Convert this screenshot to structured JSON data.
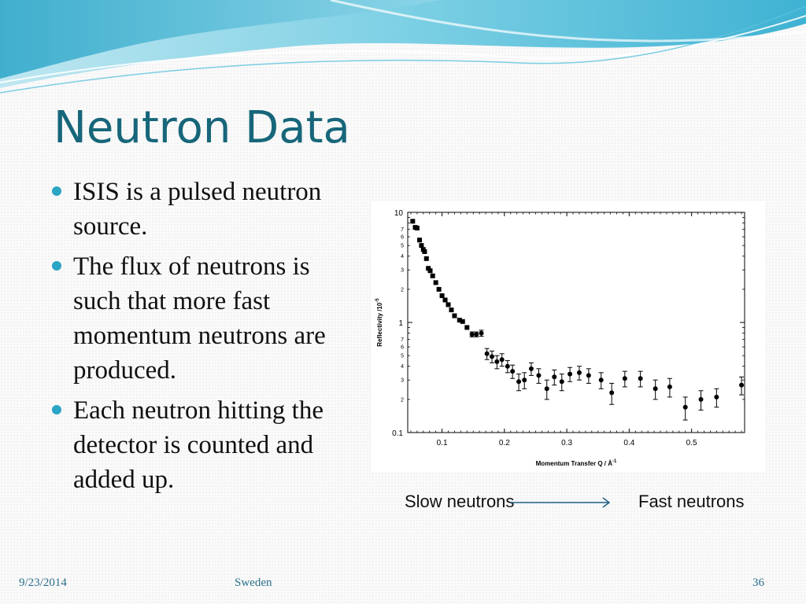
{
  "slide": {
    "title": "Neutron Data",
    "bullets": [
      "ISIS is a pulsed neutron source.",
      "The flux of neutrons is such that more fast momentum neutrons are produced.",
      "Each neutron hitting the detector is counted and added up."
    ],
    "legend": {
      "slow": "Slow neutrons",
      "fast": "Fast neutrons"
    },
    "footer": {
      "date": "9/23/2014",
      "center": "Sweden",
      "page": "36"
    },
    "accent_color": "#17667a",
    "bullet_color": "#2aa5c4"
  },
  "chart_data": {
    "type": "scatter",
    "xlabel": "Momentum Transfer Q / Å",
    "xlabel_sup": "-1",
    "ylabel": "Reflectivity /10",
    "ylabel_sup": "-5",
    "xlim": [
      0.045,
      0.585
    ],
    "ylim": [
      0.1,
      10
    ],
    "yscale": "log",
    "xticks": [
      "0.1",
      "0.2",
      "0.3",
      "0.4",
      "0.5"
    ],
    "xtick_values": [
      0.1,
      0.2,
      0.3,
      0.4,
      0.5
    ],
    "yticks_major": [
      "0.1",
      "1",
      "10"
    ],
    "ytick_major_values": [
      0.1,
      1,
      10
    ],
    "yticks_minor_labels": [
      "2",
      "3",
      "4",
      "5",
      "6",
      "7"
    ],
    "yticks_minor_values": [
      2,
      3,
      4,
      5,
      6,
      7
    ],
    "series": [
      {
        "marker": "square",
        "points": [
          {
            "x": 0.053,
            "y": 8.3
          },
          {
            "x": 0.057,
            "y": 7.3
          },
          {
            "x": 0.06,
            "y": 7.2
          },
          {
            "x": 0.064,
            "y": 5.6
          },
          {
            "x": 0.067,
            "y": 5.0
          },
          {
            "x": 0.07,
            "y": 4.6
          },
          {
            "x": 0.072,
            "y": 4.4
          },
          {
            "x": 0.075,
            "y": 3.8
          },
          {
            "x": 0.078,
            "y": 3.1
          },
          {
            "x": 0.081,
            "y": 2.95
          },
          {
            "x": 0.085,
            "y": 2.65
          },
          {
            "x": 0.09,
            "y": 2.3
          },
          {
            "x": 0.095,
            "y": 2.0
          },
          {
            "x": 0.1,
            "y": 1.75
          },
          {
            "x": 0.105,
            "y": 1.6
          },
          {
            "x": 0.11,
            "y": 1.45
          },
          {
            "x": 0.115,
            "y": 1.3
          },
          {
            "x": 0.12,
            "y": 1.15
          },
          {
            "x": 0.128,
            "y": 1.05
          },
          {
            "x": 0.133,
            "y": 1.02
          },
          {
            "x": 0.14,
            "y": 0.9
          }
        ]
      },
      {
        "marker": "circle",
        "points": [
          {
            "x": 0.148,
            "y": 0.78,
            "err": 0.04
          },
          {
            "x": 0.155,
            "y": 0.78,
            "err": 0.04
          },
          {
            "x": 0.163,
            "y": 0.8,
            "err": 0.05
          },
          {
            "x": 0.172,
            "y": 0.52,
            "err": 0.06
          },
          {
            "x": 0.18,
            "y": 0.49,
            "err": 0.06
          },
          {
            "x": 0.188,
            "y": 0.44,
            "err": 0.06
          },
          {
            "x": 0.196,
            "y": 0.46,
            "err": 0.06
          },
          {
            "x": 0.205,
            "y": 0.4,
            "err": 0.05
          },
          {
            "x": 0.213,
            "y": 0.36,
            "err": 0.05
          },
          {
            "x": 0.223,
            "y": 0.29,
            "err": 0.05
          },
          {
            "x": 0.232,
            "y": 0.3,
            "err": 0.05
          },
          {
            "x": 0.243,
            "y": 0.38,
            "err": 0.05
          },
          {
            "x": 0.255,
            "y": 0.33,
            "err": 0.05
          },
          {
            "x": 0.268,
            "y": 0.25,
            "err": 0.05
          },
          {
            "x": 0.28,
            "y": 0.32,
            "err": 0.05
          },
          {
            "x": 0.292,
            "y": 0.29,
            "err": 0.05
          },
          {
            "x": 0.305,
            "y": 0.34,
            "err": 0.05
          },
          {
            "x": 0.32,
            "y": 0.35,
            "err": 0.05
          },
          {
            "x": 0.335,
            "y": 0.33,
            "err": 0.05
          },
          {
            "x": 0.355,
            "y": 0.3,
            "err": 0.05
          },
          {
            "x": 0.372,
            "y": 0.23,
            "err": 0.05
          },
          {
            "x": 0.393,
            "y": 0.31,
            "err": 0.05
          },
          {
            "x": 0.418,
            "y": 0.31,
            "err": 0.05
          },
          {
            "x": 0.442,
            "y": 0.25,
            "err": 0.05
          },
          {
            "x": 0.465,
            "y": 0.26,
            "err": 0.05
          },
          {
            "x": 0.49,
            "y": 0.17,
            "err": 0.04
          },
          {
            "x": 0.515,
            "y": 0.2,
            "err": 0.04
          },
          {
            "x": 0.54,
            "y": 0.21,
            "err": 0.04
          },
          {
            "x": 0.58,
            "y": 0.27,
            "err": 0.05
          }
        ]
      }
    ]
  }
}
